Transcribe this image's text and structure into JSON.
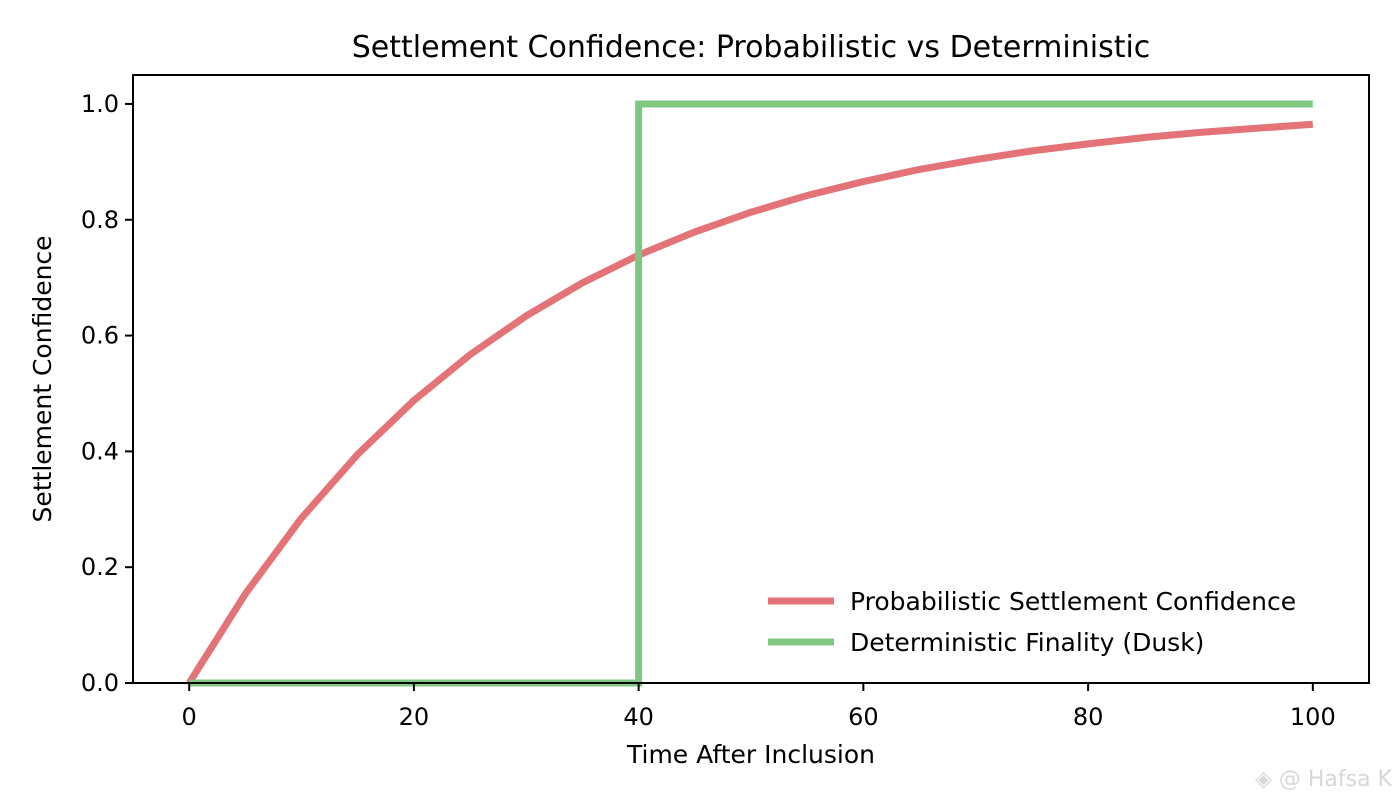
{
  "chart_data": {
    "type": "line",
    "title": "Settlement Confidence: Probabilistic vs Deterministic",
    "xlabel": "Time After Inclusion",
    "ylabel": "Settlement Confidence",
    "xlim": [
      -5,
      105
    ],
    "ylim": [
      0,
      1.05
    ],
    "xticks": [
      0,
      20,
      40,
      60,
      80,
      100
    ],
    "yticks": [
      0.0,
      0.2,
      0.4,
      0.6,
      0.8,
      1.0
    ],
    "xtick_labels": [
      "0",
      "20",
      "40",
      "60",
      "80",
      "100"
    ],
    "ytick_labels": [
      "0.0",
      "0.2",
      "0.4",
      "0.6",
      "0.8",
      "1.0"
    ],
    "grid": false,
    "legend_position": "lower-right",
    "series": [
      {
        "name": "Probabilistic Settlement Confidence",
        "color": "#e37376",
        "x": [
          0,
          5,
          10,
          15,
          20,
          25,
          30,
          35,
          40,
          45,
          50,
          55,
          60,
          65,
          70,
          75,
          80,
          85,
          90,
          95,
          100
        ],
        "y": [
          0.0,
          0.154,
          0.285,
          0.395,
          0.488,
          0.567,
          0.634,
          0.691,
          0.739,
          0.779,
          0.813,
          0.842,
          0.866,
          0.887,
          0.904,
          0.919,
          0.931,
          0.942,
          0.951,
          0.958,
          0.965
        ]
      },
      {
        "name": "Deterministic Finality (Dusk)",
        "color": "#81c784",
        "x": [
          0,
          40,
          40,
          100
        ],
        "y": [
          0,
          0,
          1,
          1
        ]
      }
    ]
  },
  "watermark": {
    "text": "◈ @ Hafsa K"
  }
}
